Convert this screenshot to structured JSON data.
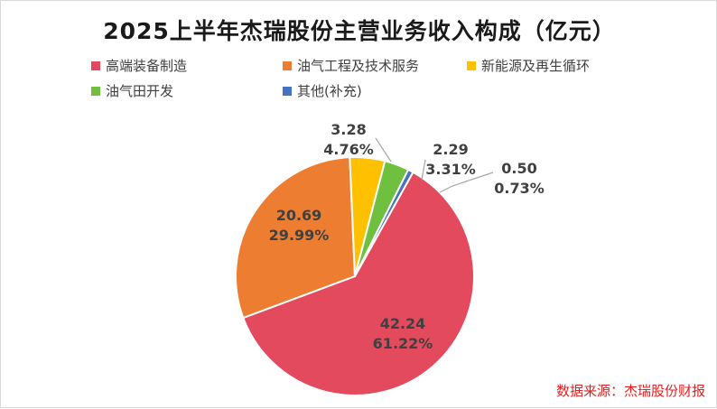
{
  "chart_data": {
    "type": "pie",
    "title": "2025上半年杰瑞股份主营业务收入构成（亿元）",
    "slices": [
      {
        "name": "高端装备制造",
        "value": 42.24,
        "percent": "61.22%",
        "value_label": "42.24",
        "color": "#e34a5d"
      },
      {
        "name": "油气工程及技术服务",
        "value": 20.69,
        "percent": "29.99%",
        "value_label": "20.69",
        "color": "#ed7d31"
      },
      {
        "name": "新能源及再生循环",
        "value": 3.28,
        "percent": "4.76%",
        "value_label": "3.28",
        "color": "#ffc000"
      },
      {
        "name": "油气田开发",
        "value": 2.29,
        "percent": "3.31%",
        "value_label": "2.29",
        "color": "#70c040"
      },
      {
        "name": "其他(补充)",
        "value": 0.5,
        "percent": "0.73%",
        "value_label": "0.50",
        "color": "#4472c4"
      }
    ],
    "legend_position": "top",
    "start_angle_deg": 29.2,
    "direction": "clockwise"
  },
  "source_text": "数据来源：杰瑞股份财报"
}
